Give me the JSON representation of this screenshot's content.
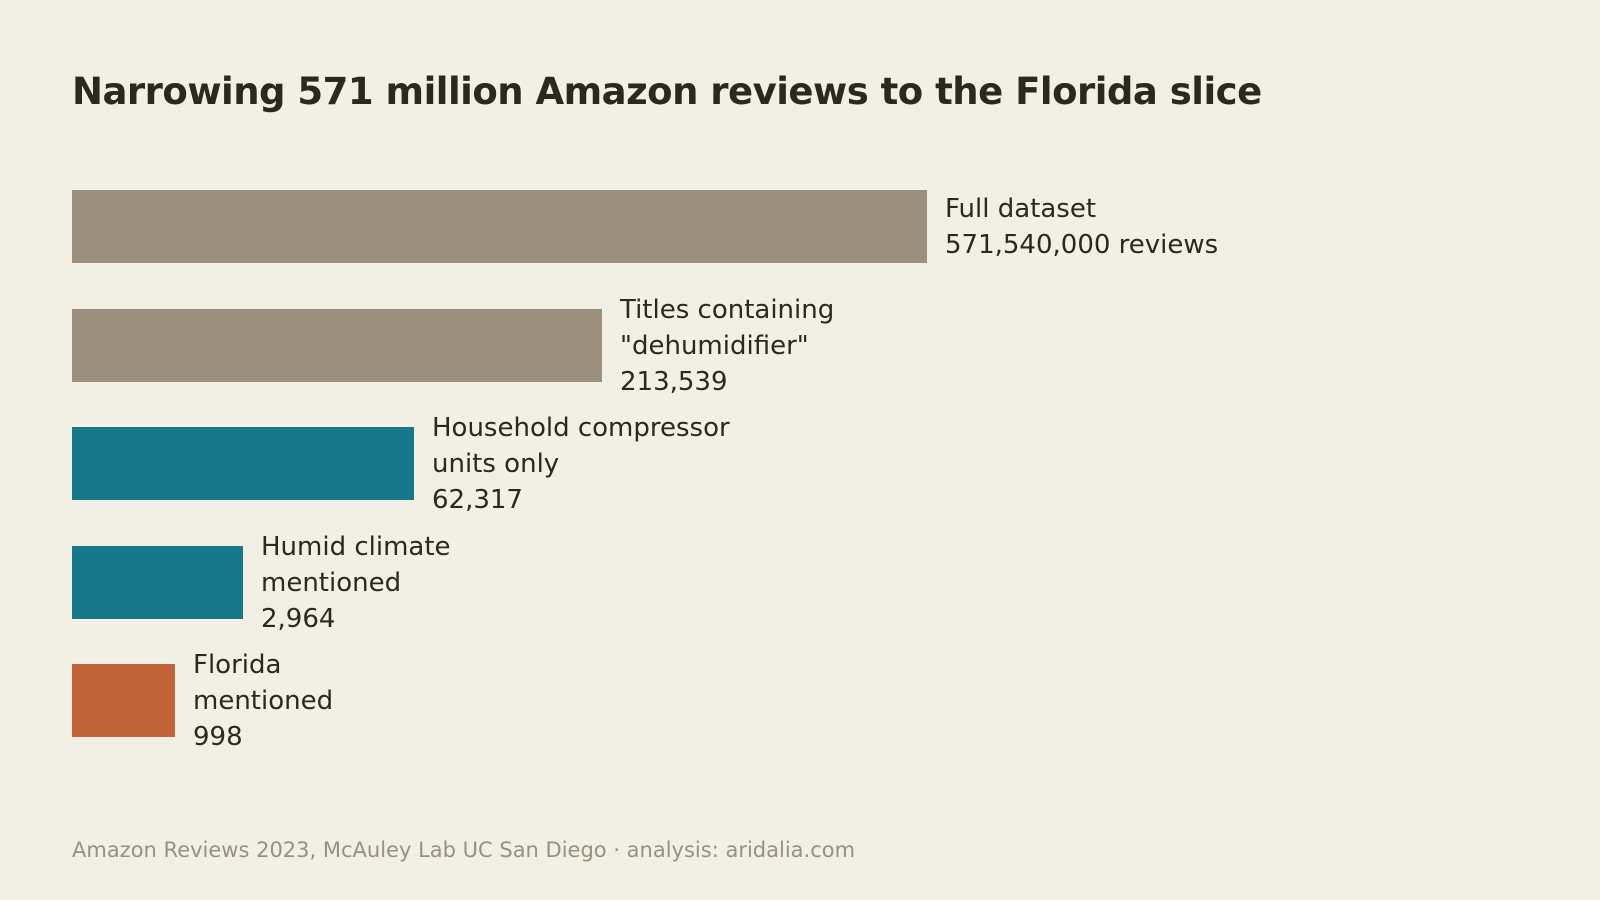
{
  "chart_data": {
    "type": "bar",
    "orientation": "horizontal",
    "title": "Narrowing 571 million Amazon reviews to the Florida slice",
    "source": "Amazon Reviews 2023, McAuley Lab UC San Diego · analysis: aridalia.com",
    "categories": [
      [
        "Full dataset"
      ],
      [
        "Titles containing",
        "\"dehumidifier\""
      ],
      [
        "Household compressor",
        "units only"
      ],
      [
        "Humid climate",
        "mentioned"
      ],
      [
        "Florida",
        "mentioned"
      ]
    ],
    "values": [
      571540000,
      213539,
      62317,
      2964,
      998
    ],
    "value_labels": [
      "571,540,000 reviews",
      "213,539",
      "62,317",
      "2,964",
      "998"
    ],
    "scale": "non-linear (bar lengths not proportional to values)",
    "relative_lengths": [
      1.0,
      0.62,
      0.4,
      0.2,
      0.12
    ],
    "colors": [
      "#9b8f7e",
      "#9b8f7e",
      "#17788a",
      "#17788a",
      "#c2643a"
    ],
    "grid": false,
    "legend": "none"
  }
}
